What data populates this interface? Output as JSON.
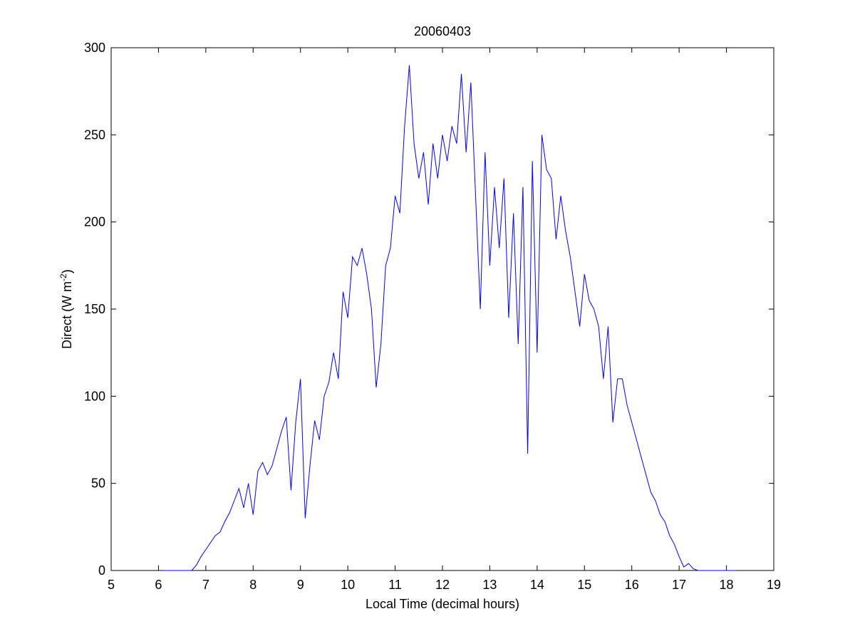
{
  "chart_data": {
    "type": "line",
    "title": "20060403",
    "xlabel": "Local Time (decimal hours)",
    "ylabel": [
      "Direct (W m",
      "-2",
      ")"
    ],
    "x": [
      6.1,
      6.2,
      6.3,
      6.4,
      6.5,
      6.6,
      6.7,
      6.8,
      6.9,
      7.0,
      7.1,
      7.2,
      7.3,
      7.4,
      7.5,
      7.6,
      7.7,
      7.8,
      7.9,
      8.0,
      8.1,
      8.2,
      8.3,
      8.4,
      8.5,
      8.6,
      8.7,
      8.8,
      8.9,
      9.0,
      9.1,
      9.2,
      9.3,
      9.4,
      9.5,
      9.6,
      9.7,
      9.8,
      9.9,
      10.0,
      10.1,
      10.2,
      10.3,
      10.4,
      10.5,
      10.6,
      10.7,
      10.8,
      10.9,
      11.0,
      11.1,
      11.2,
      11.3,
      11.4,
      11.5,
      11.6,
      11.7,
      11.8,
      11.9,
      12.0,
      12.1,
      12.2,
      12.3,
      12.4,
      12.5,
      12.6,
      12.7,
      12.8,
      12.9,
      13.0,
      13.1,
      13.2,
      13.3,
      13.4,
      13.5,
      13.6,
      13.7,
      13.8,
      13.9,
      14.0,
      14.1,
      14.2,
      14.3,
      14.4,
      14.5,
      14.6,
      14.7,
      14.8,
      14.9,
      15.0,
      15.1,
      15.2,
      15.3,
      15.4,
      15.5,
      15.6,
      15.7,
      15.8,
      15.9,
      16.0,
      16.1,
      16.2,
      16.3,
      16.4,
      16.5,
      16.6,
      16.7,
      16.8,
      16.9,
      17.0,
      17.1,
      17.2,
      17.3,
      17.4,
      17.5,
      17.6,
      17.7,
      17.8,
      17.9,
      18.0,
      18.1,
      18.2
    ],
    "series": [
      {
        "name": "Direct",
        "color": "#0000ff",
        "values": [
          0,
          0,
          0,
          0,
          0,
          0,
          0,
          3,
          8,
          12,
          16,
          20,
          22,
          28,
          33,
          40,
          47,
          36,
          50,
          32,
          57,
          62,
          55,
          60,
          70,
          80,
          88,
          46,
          85,
          110,
          30,
          60,
          86,
          75,
          100,
          108,
          125,
          110,
          160,
          145,
          180,
          175,
          185,
          170,
          150,
          105,
          130,
          175,
          185,
          215,
          205,
          255,
          290,
          245,
          225,
          240,
          210,
          245,
          225,
          250,
          235,
          255,
          245,
          285,
          240,
          280,
          215,
          150,
          240,
          175,
          220,
          185,
          225,
          145,
          205,
          130,
          220,
          67,
          235,
          125,
          250,
          230,
          225,
          190,
          215,
          195,
          180,
          160,
          140,
          170,
          155,
          150,
          140,
          110,
          140,
          85,
          110,
          110,
          95,
          85,
          75,
          65,
          55,
          45,
          40,
          32,
          28,
          20,
          15,
          8,
          2,
          4,
          1,
          0,
          0,
          0,
          0,
          0,
          0,
          0,
          0,
          0
        ]
      }
    ],
    "xlim": [
      5,
      19
    ],
    "xticks": [
      5,
      6,
      7,
      8,
      9,
      10,
      11,
      12,
      13,
      14,
      15,
      16,
      17,
      18,
      19
    ],
    "ylim": [
      0,
      300
    ],
    "yticks": [
      0,
      50,
      100,
      150,
      200,
      250,
      300
    ],
    "grid": false
  }
}
